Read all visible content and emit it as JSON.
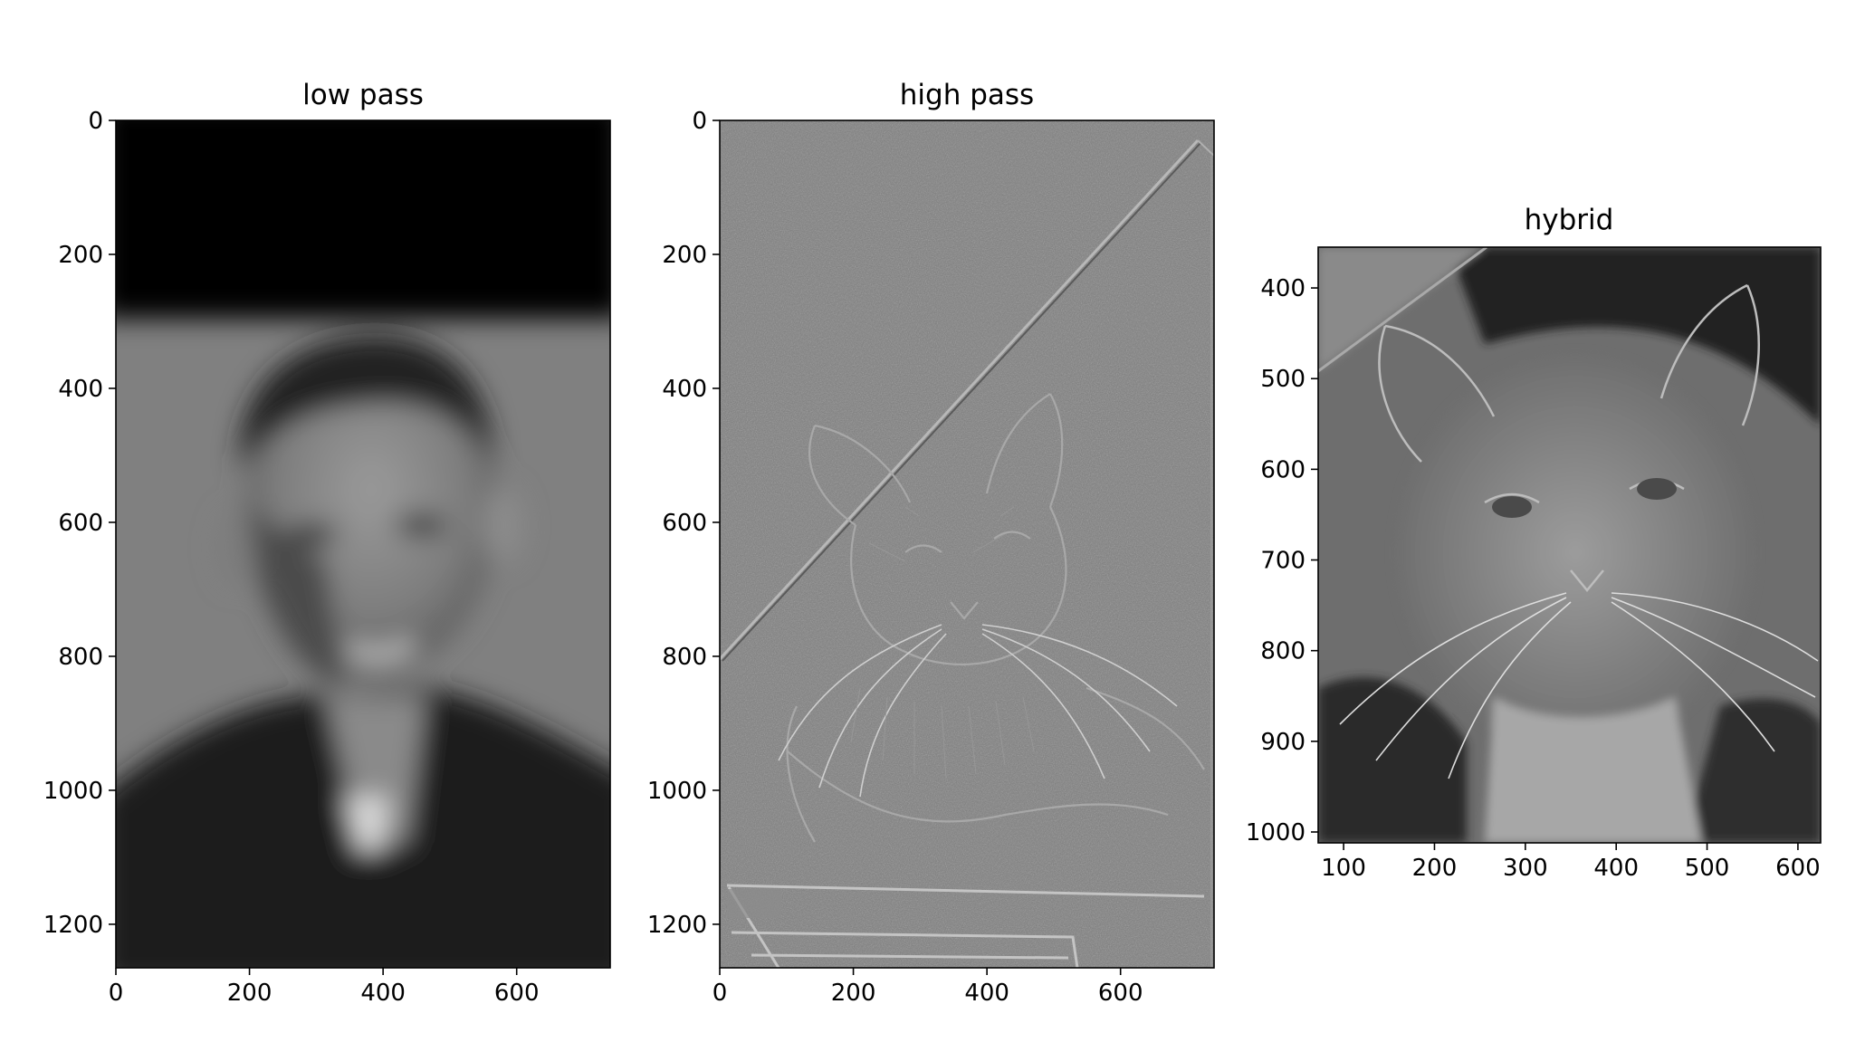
{
  "panels": [
    {
      "id": "low",
      "title": "low pass",
      "image": "blurred grayscale portrait of a smiling man",
      "xlim": [
        0,
        740
      ],
      "ylim": [
        1265,
        0
      ],
      "xticks": [
        0,
        200,
        400,
        600
      ],
      "yticks": [
        0,
        200,
        400,
        600,
        800,
        1000,
        1200
      ]
    },
    {
      "id": "high",
      "title": "high pass",
      "image": "edge-filtered grayscale cat",
      "xlim": [
        0,
        740
      ],
      "ylim": [
        1265,
        0
      ],
      "xticks": [
        0,
        200,
        400,
        600
      ],
      "yticks": [
        0,
        200,
        400,
        600,
        800,
        1000,
        1200
      ]
    },
    {
      "id": "hyb",
      "title": "hybrid",
      "image": "hybrid of cat and man",
      "xlim": [
        72,
        625
      ],
      "ylim": [
        1012,
        355
      ],
      "xticks": [
        100,
        200,
        300,
        400,
        500,
        600
      ],
      "yticks": [
        400,
        500,
        600,
        700,
        800,
        900,
        1000
      ]
    }
  ]
}
